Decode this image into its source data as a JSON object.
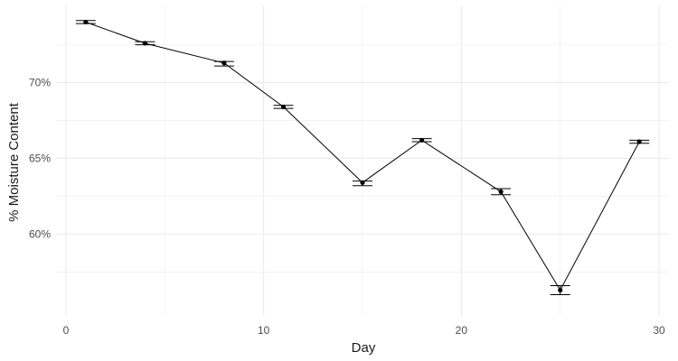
{
  "chart_data": {
    "type": "line",
    "title": "",
    "xlabel": "Day",
    "ylabel": "% Moisture Content",
    "xlim": [
      -0.5,
      30.5
    ],
    "ylim": [
      54.6,
      75.1
    ],
    "x_ticks": [
      0,
      10,
      20,
      30
    ],
    "y_ticks": [
      60,
      65,
      70
    ],
    "y_tick_labels": [
      "60%",
      "65%",
      "70%"
    ],
    "grid": true,
    "legend": "none",
    "line_color": "#000000",
    "grid_color": "#ebebeb",
    "series": [
      {
        "x": [
          1,
          4,
          8,
          11,
          15,
          18,
          22,
          25,
          29
        ],
        "y": [
          74.0,
          72.6,
          71.3,
          68.4,
          63.4,
          66.2,
          62.8,
          56.3,
          66.1
        ],
        "error_low": [
          73.9,
          72.5,
          71.1,
          68.3,
          63.2,
          66.1,
          62.6,
          56.0,
          66.0
        ],
        "error_high": [
          74.1,
          72.7,
          71.4,
          68.5,
          63.5,
          66.3,
          63.0,
          56.6,
          66.2
        ]
      }
    ]
  }
}
